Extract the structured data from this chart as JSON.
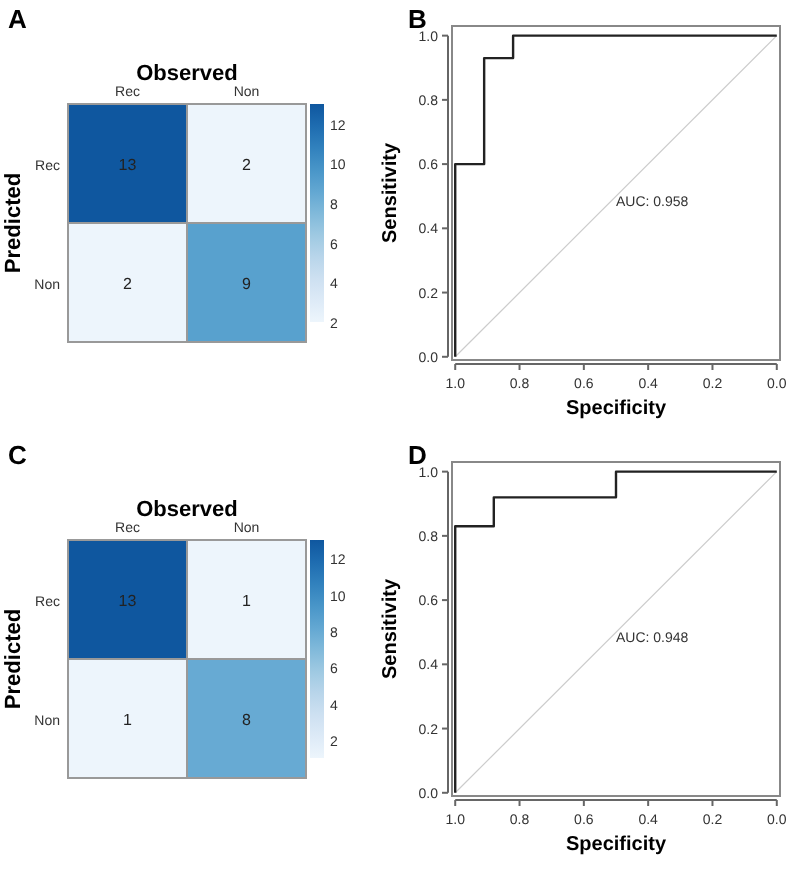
{
  "chart_data": [
    {
      "type": "heatmap",
      "title": "A",
      "xlabel": "Observed",
      "ylabel": "Predicted",
      "categories": [
        "Rec",
        "Non"
      ],
      "y_categories": [
        "Rec",
        "Non"
      ],
      "cells": [
        [
          13,
          2
        ],
        [
          2,
          9
        ]
      ],
      "clim": [
        2,
        13
      ],
      "cticks": [
        2,
        4,
        6,
        8,
        10,
        12
      ],
      "data_labels": true
    },
    {
      "type": "line",
      "title": "B",
      "xlabel": "Specificity",
      "ylabel": "Sensitivity",
      "xlim": [
        1.01,
        -0.01
      ],
      "ylim": [
        -0.01,
        1.03
      ],
      "xticks": [
        {
          "value": 1,
          "label": "1.0"
        },
        {
          "value": 0.8,
          "label": "0.8"
        },
        {
          "value": 0.6,
          "label": "0.6"
        },
        {
          "value": 0.4,
          "label": "0.4"
        },
        {
          "value": 0.2,
          "label": "0.2"
        },
        {
          "value": 0,
          "label": "0.0"
        }
      ],
      "yticks": [
        {
          "value": 0,
          "label": "0.0"
        },
        {
          "value": 0.2,
          "label": "0.2"
        },
        {
          "value": 0.4,
          "label": "0.4"
        },
        {
          "value": 0.6,
          "label": "0.6"
        },
        {
          "value": 0.8,
          "label": "0.8"
        },
        {
          "value": 1,
          "label": "1.0"
        }
      ],
      "series": [
        {
          "color": "#cccccc",
          "x": [
            1,
            0
          ],
          "values": [
            0,
            1
          ]
        },
        {
          "color": "#222222",
          "x": [
            1,
            1,
            0.91,
            0.91,
            0.82,
            0.82,
            0
          ],
          "values": [
            0,
            0.6,
            0.6,
            0.93,
            0.93,
            1,
            1
          ]
        }
      ],
      "annotations": [
        "AUC: 0.958"
      ],
      "grid": false
    },
    {
      "type": "heatmap",
      "title": "C",
      "xlabel": "Observed",
      "ylabel": "Predicted",
      "categories": [
        "Rec",
        "Non"
      ],
      "y_categories": [
        "Rec",
        "Non"
      ],
      "cells": [
        [
          13,
          1
        ],
        [
          1,
          8
        ]
      ],
      "clim": [
        1,
        13
      ],
      "cticks": [
        2,
        4,
        6,
        8,
        10,
        12
      ],
      "data_labels": true
    },
    {
      "type": "line",
      "title": "D",
      "xlabel": "Specificity",
      "ylabel": "Sensitivity",
      "xlim": [
        1.01,
        -0.01
      ],
      "ylim": [
        -0.01,
        1.03
      ],
      "xticks": [
        {
          "value": 1,
          "label": "1.0"
        },
        {
          "value": 0.8,
          "label": "0.8"
        },
        {
          "value": 0.6,
          "label": "0.6"
        },
        {
          "value": 0.4,
          "label": "0.4"
        },
        {
          "value": 0.2,
          "label": "0.2"
        },
        {
          "value": 0,
          "label": "0.0"
        }
      ],
      "yticks": [
        {
          "value": 0,
          "label": "0.0"
        },
        {
          "value": 0.2,
          "label": "0.2"
        },
        {
          "value": 0.4,
          "label": "0.4"
        },
        {
          "value": 0.6,
          "label": "0.6"
        },
        {
          "value": 0.8,
          "label": "0.8"
        },
        {
          "value": 1,
          "label": "1.0"
        }
      ],
      "series": [
        {
          "color": "#cccccc",
          "x": [
            1,
            0
          ],
          "values": [
            0,
            1
          ]
        },
        {
          "color": "#222222",
          "x": [
            1,
            1,
            0.88,
            0.88,
            0.5,
            0.5,
            0
          ],
          "values": [
            0,
            0.83,
            0.83,
            0.92,
            0.92,
            1,
            1
          ]
        }
      ],
      "annotations": [
        "AUC: 0.948"
      ],
      "grid": false
    }
  ]
}
